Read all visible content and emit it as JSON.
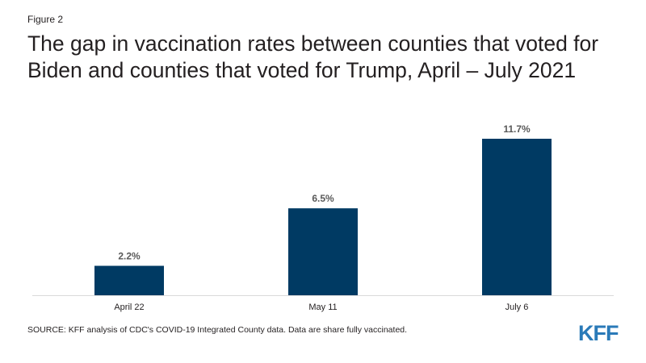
{
  "figure_label": "Figure 2",
  "title": "The gap in vaccination rates between counties that voted for Biden and counties that voted for Trump, April – July 2021",
  "source": "SOURCE:  KFF analysis of CDC's COVID-19 Integrated County data. Data are share fully vaccinated.",
  "logo_text": "KFF",
  "colors": {
    "bar": "#003a63",
    "logo": "#2a7ab8"
  },
  "chart_data": {
    "type": "bar",
    "categories": [
      "April 22",
      "May 11",
      "July 6"
    ],
    "values": [
      2.2,
      6.5,
      11.7
    ],
    "data_labels": [
      "2.2%",
      "6.5%",
      "11.7%"
    ],
    "title": "",
    "xlabel": "",
    "ylabel": "",
    "ylim": [
      0,
      11.7
    ],
    "grid": false,
    "legend": "none"
  }
}
